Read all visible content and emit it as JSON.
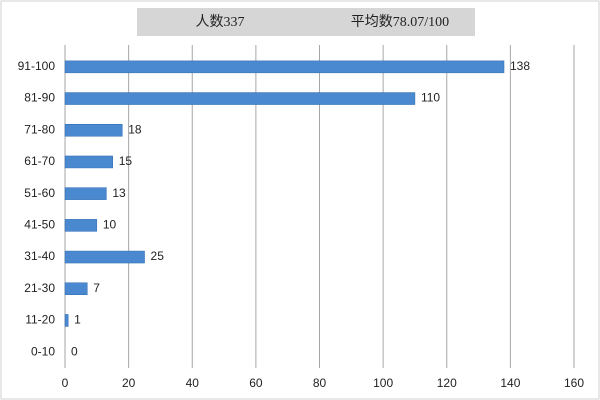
{
  "chart_data": {
    "type": "hbar",
    "title": "人数337",
    "subtitle": "平均数78.07/100",
    "categories": [
      "91-100",
      "81-90",
      "71-80",
      "61-70",
      "51-60",
      "41-50",
      "31-40",
      "21-30",
      "11-20",
      "0-10"
    ],
    "values": [
      138,
      110,
      18,
      15,
      13,
      10,
      25,
      7,
      1,
      0
    ],
    "color": "#4a89d0",
    "xlim": [
      0,
      160
    ],
    "xticks": [
      0,
      20,
      40,
      60,
      80,
      100,
      120,
      140,
      160
    ],
    "grid": true
  }
}
